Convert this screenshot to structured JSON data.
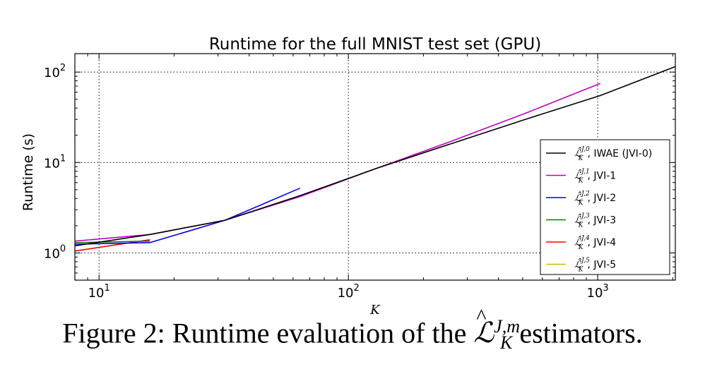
{
  "chart_data": {
    "type": "line",
    "title": "Runtime for the full MNIST test set (GPU)",
    "xlabel": "K",
    "ylabel": "Runtime (s)",
    "xscale": "log",
    "yscale": "log",
    "xlim": [
      8,
      2048
    ],
    "ylim": [
      0.5,
      160
    ],
    "x_ticks": [
      {
        "value": 10,
        "base": "10",
        "exp": "1"
      },
      {
        "value": 100,
        "base": "10",
        "exp": "2"
      },
      {
        "value": 1000,
        "base": "10",
        "exp": "3"
      }
    ],
    "y_ticks": [
      {
        "value": 1,
        "base": "10",
        "exp": "0"
      },
      {
        "value": 10,
        "base": "10",
        "exp": "1"
      },
      {
        "value": 100,
        "base": "10",
        "exp": "2"
      }
    ],
    "grid": true,
    "legend_position": "right",
    "series": [
      {
        "name": "IWAE (JVI-0)",
        "sup": "J,0",
        "color": "#000000",
        "x": [
          8,
          16,
          32,
          64,
          128,
          256,
          512,
          1024,
          2048
        ],
        "y": [
          1.2,
          1.6,
          2.3,
          4.3,
          8.5,
          16,
          30,
          55,
          115
        ]
      },
      {
        "name": "JVI-1",
        "sup": "J,1",
        "color": "#bf00bf",
        "x": [
          8,
          16,
          32,
          64,
          128,
          256,
          512,
          1024
        ],
        "y": [
          1.35,
          1.6,
          2.3,
          4.2,
          8.5,
          17,
          35,
          75
        ]
      },
      {
        "name": "JVI-2",
        "sup": "J,2",
        "color": "#0000ff",
        "x": [
          8,
          16,
          32,
          64
        ],
        "y": [
          1.25,
          1.3,
          2.3,
          5.2
        ]
      },
      {
        "name": "JVI-3",
        "sup": "J,3",
        "color": "#008000",
        "x": [
          8,
          16
        ],
        "y": [
          1.3,
          1.35
        ]
      },
      {
        "name": "JVI-4",
        "sup": "J,4",
        "color": "#ff0000",
        "x": [
          8,
          16
        ],
        "y": [
          1.05,
          1.4
        ]
      },
      {
        "name": "JVI-5",
        "sup": "J,5",
        "color": "#bfbf00",
        "x": [
          8
        ],
        "y": [
          1.3
        ]
      }
    ]
  },
  "caption": {
    "prefix": "Figure 2: Runtime evaluation of the ",
    "symbol": "ℒ",
    "superscript": "J,m",
    "subscript": "K",
    "suffix": " estimators."
  }
}
